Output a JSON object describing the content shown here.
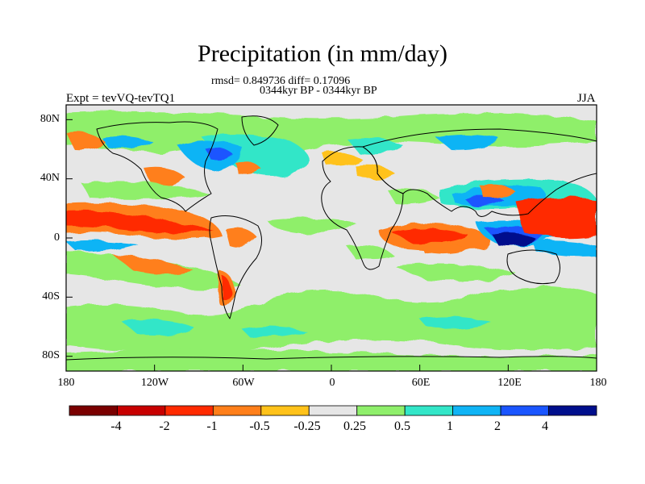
{
  "title": "Precipitation (in mm/day)",
  "stats_line": "rmsd= 0.849736 diff= 0.17096",
  "period_line": "0344kyr BP - 0344kyr BP",
  "left_label": "Expt = tevVQ-tevTQ1",
  "right_label": "JJA",
  "lat_ticks": [
    {
      "label": "80N",
      "value": 80
    },
    {
      "label": "40N",
      "value": 40
    },
    {
      "label": "0",
      "value": 0
    },
    {
      "label": "40S",
      "value": -40
    },
    {
      "label": "80S",
      "value": -80
    }
  ],
  "lon_ticks": [
    {
      "label": "180",
      "value": -180
    },
    {
      "label": "120W",
      "value": -120
    },
    {
      "label": "60W",
      "value": -60
    },
    {
      "label": "0",
      "value": 0
    },
    {
      "label": "60E",
      "value": 60
    },
    {
      "label": "120E",
      "value": 120
    },
    {
      "label": "180",
      "value": 180
    }
  ],
  "colorbar": {
    "colors": [
      "#7a0000",
      "#c70000",
      "#ff2a00",
      "#ff7f1a",
      "#ffc21a",
      "#e6e6e6",
      "#8fef6b",
      "#33e6c8",
      "#10b4f5",
      "#1a55ff",
      "#000f8c"
    ],
    "labels": [
      "-4",
      "-2",
      "-1",
      "-0.5",
      "-0.25",
      "0.25",
      "0.5",
      "1",
      "2",
      "4"
    ]
  },
  "colors": {
    "background_field": "#e6e6e6",
    "coastline": "#000000"
  }
}
